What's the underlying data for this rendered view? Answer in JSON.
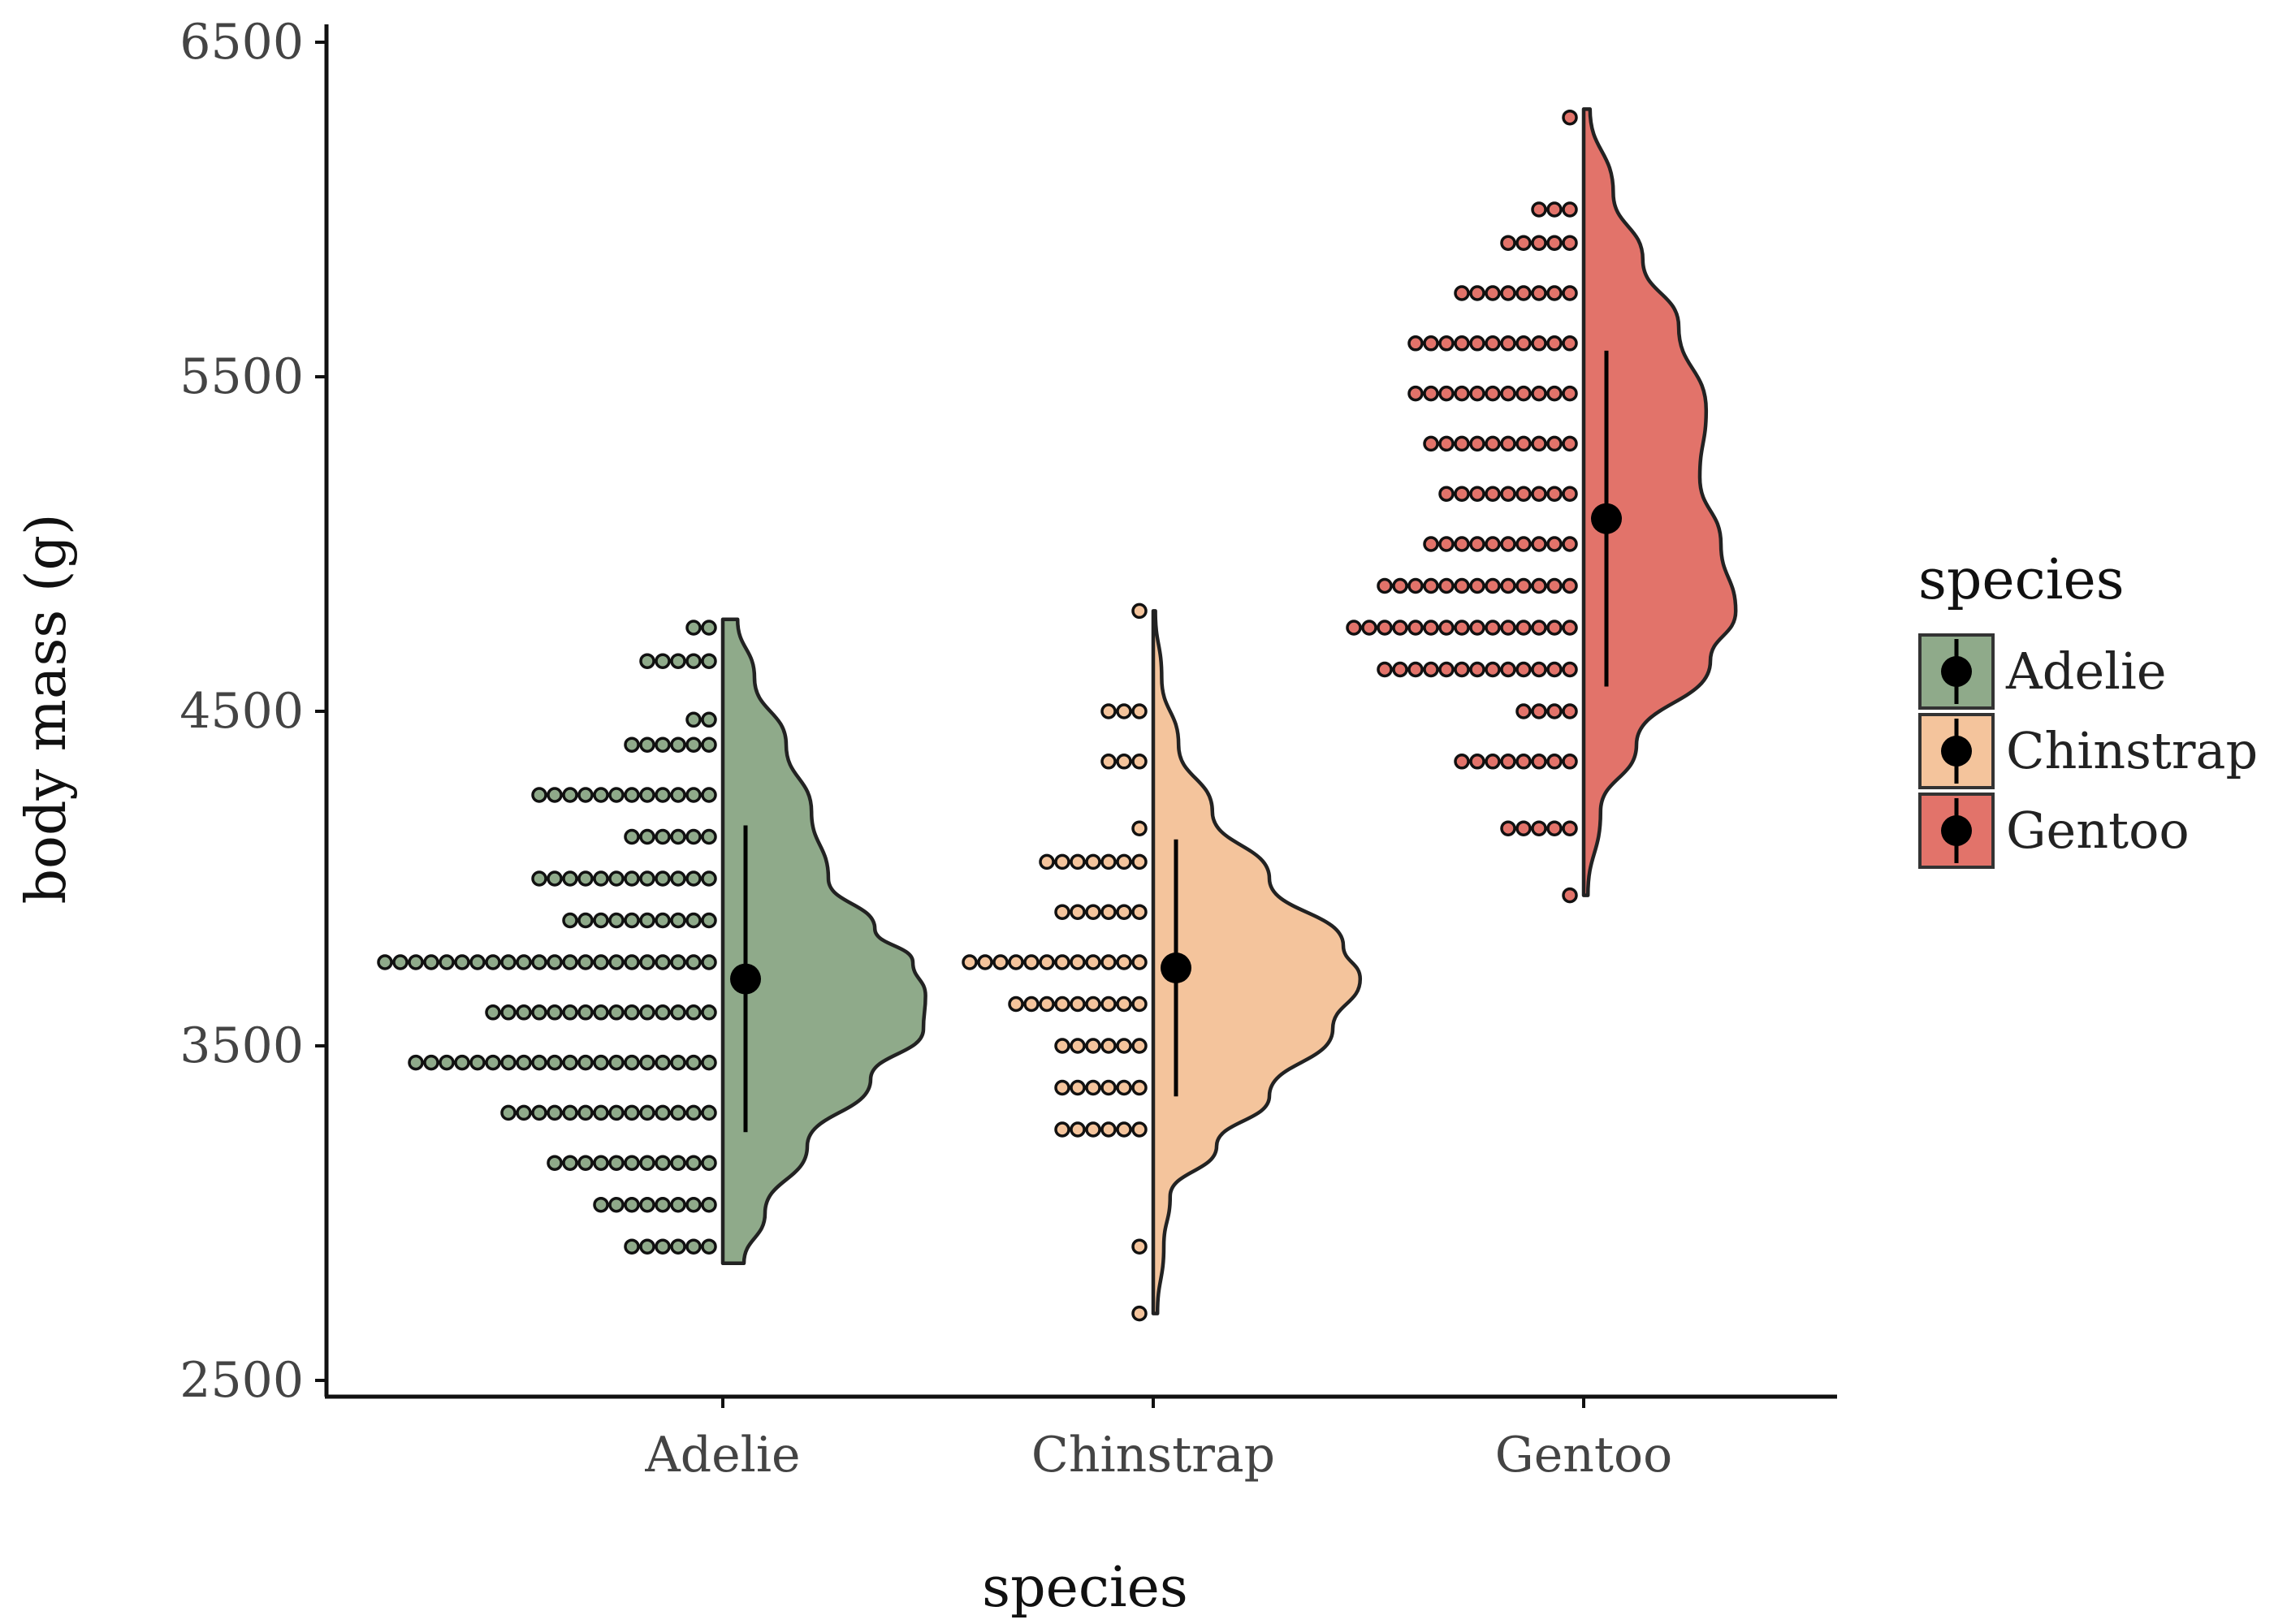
{
  "chart_data": {
    "type": "raincloud",
    "title": "",
    "xlabel": "species",
    "ylabel": "body mass (g)",
    "ylim": [
      2500,
      6500
    ],
    "yticks": [
      2500,
      3500,
      4500,
      5500,
      6500
    ],
    "categories": [
      "Adelie",
      "Chinstrap",
      "Gentoo"
    ],
    "grid": false,
    "legend": {
      "title": "species",
      "placement": "right"
    },
    "series": [
      {
        "name": "Adelie",
        "color": "#8FAA8A",
        "mean": 3700,
        "lower": 3242,
        "upper": 4159,
        "min": 2850,
        "max": 4775,
        "density": [
          [
            2850,
            0.1
          ],
          [
            3000,
            0.2
          ],
          [
            3200,
            0.4
          ],
          [
            3400,
            0.7
          ],
          [
            3550,
            0.95
          ],
          [
            3650,
            0.96
          ],
          [
            3750,
            0.9
          ],
          [
            3850,
            0.72
          ],
          [
            4000,
            0.5
          ],
          [
            4200,
            0.42
          ],
          [
            4400,
            0.3
          ],
          [
            4600,
            0.15
          ],
          [
            4775,
            0.07
          ]
        ],
        "dots": [
          [
            2900,
            6
          ],
          [
            3025,
            8
          ],
          [
            3150,
            11
          ],
          [
            3300,
            14
          ],
          [
            3450,
            20
          ],
          [
            3600,
            15
          ],
          [
            3750,
            22
          ],
          [
            3875,
            10
          ],
          [
            4000,
            12
          ],
          [
            4125,
            6
          ],
          [
            4250,
            12
          ],
          [
            4400,
            6
          ],
          [
            4475,
            2
          ],
          [
            4650,
            5
          ],
          [
            4750,
            2
          ]
        ]
      },
      {
        "name": "Chinstrap",
        "color": "#F4C49C",
        "mean": 3733,
        "lower": 3349,
        "upper": 4117,
        "min": 2700,
        "max": 4800,
        "density": [
          [
            2700,
            0.02
          ],
          [
            2900,
            0.05
          ],
          [
            3050,
            0.08
          ],
          [
            3200,
            0.3
          ],
          [
            3350,
            0.55
          ],
          [
            3550,
            0.85
          ],
          [
            3700,
            0.98
          ],
          [
            3800,
            0.9
          ],
          [
            4000,
            0.55
          ],
          [
            4200,
            0.28
          ],
          [
            4400,
            0.12
          ],
          [
            4600,
            0.04
          ],
          [
            4800,
            0.01
          ]
        ],
        "dots": [
          [
            2700,
            1
          ],
          [
            2900,
            1
          ],
          [
            3250,
            6
          ],
          [
            3375,
            6
          ],
          [
            3500,
            6
          ],
          [
            3625,
            9
          ],
          [
            3750,
            12
          ],
          [
            3900,
            6
          ],
          [
            4050,
            7
          ],
          [
            4150,
            1
          ],
          [
            4350,
            3
          ],
          [
            4500,
            3
          ],
          [
            4800,
            1
          ]
        ]
      },
      {
        "name": "Gentoo",
        "color": "#E2736A",
        "mean": 5076,
        "lower": 4574,
        "upper": 5578,
        "min": 3950,
        "max": 6300,
        "density": [
          [
            3950,
            0.02
          ],
          [
            4200,
            0.08
          ],
          [
            4400,
            0.25
          ],
          [
            4650,
            0.6
          ],
          [
            4800,
            0.72
          ],
          [
            5000,
            0.65
          ],
          [
            5200,
            0.55
          ],
          [
            5400,
            0.58
          ],
          [
            5650,
            0.45
          ],
          [
            5850,
            0.28
          ],
          [
            6050,
            0.14
          ],
          [
            6300,
            0.03
          ]
        ],
        "dots": [
          [
            3950,
            1
          ],
          [
            4150,
            5
          ],
          [
            4350,
            8
          ],
          [
            4500,
            4
          ],
          [
            4625,
            13
          ],
          [
            4750,
            15
          ],
          [
            4875,
            13
          ],
          [
            5000,
            10
          ],
          [
            5150,
            9
          ],
          [
            5300,
            10
          ],
          [
            5450,
            11
          ],
          [
            5600,
            11
          ],
          [
            5750,
            8
          ],
          [
            5900,
            5
          ],
          [
            6000,
            3
          ],
          [
            6275,
            1
          ]
        ]
      }
    ]
  }
}
